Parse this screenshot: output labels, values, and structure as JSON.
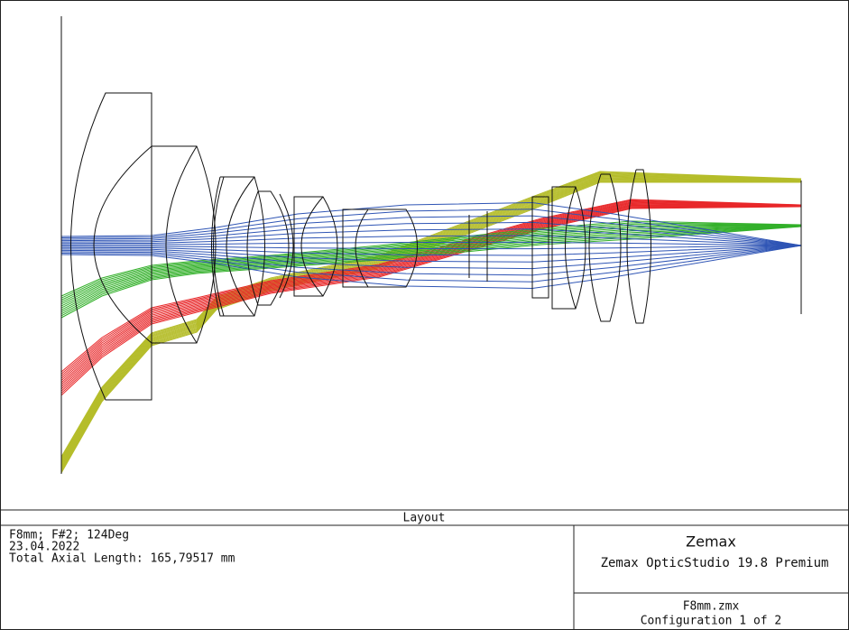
{
  "plot": {
    "title": "Layout"
  },
  "info": {
    "lines": [
      "F8mm; F#2; 124Deg",
      "23.04.2022",
      "Total Axial Length:  165,79517 mm"
    ]
  },
  "brand": {
    "name": "Zemax",
    "product": "Zemax OpticStudio 19.8 Premium"
  },
  "file": {
    "name": "F8mm.zmx",
    "configuration": "Configuration 1 of 2"
  }
}
